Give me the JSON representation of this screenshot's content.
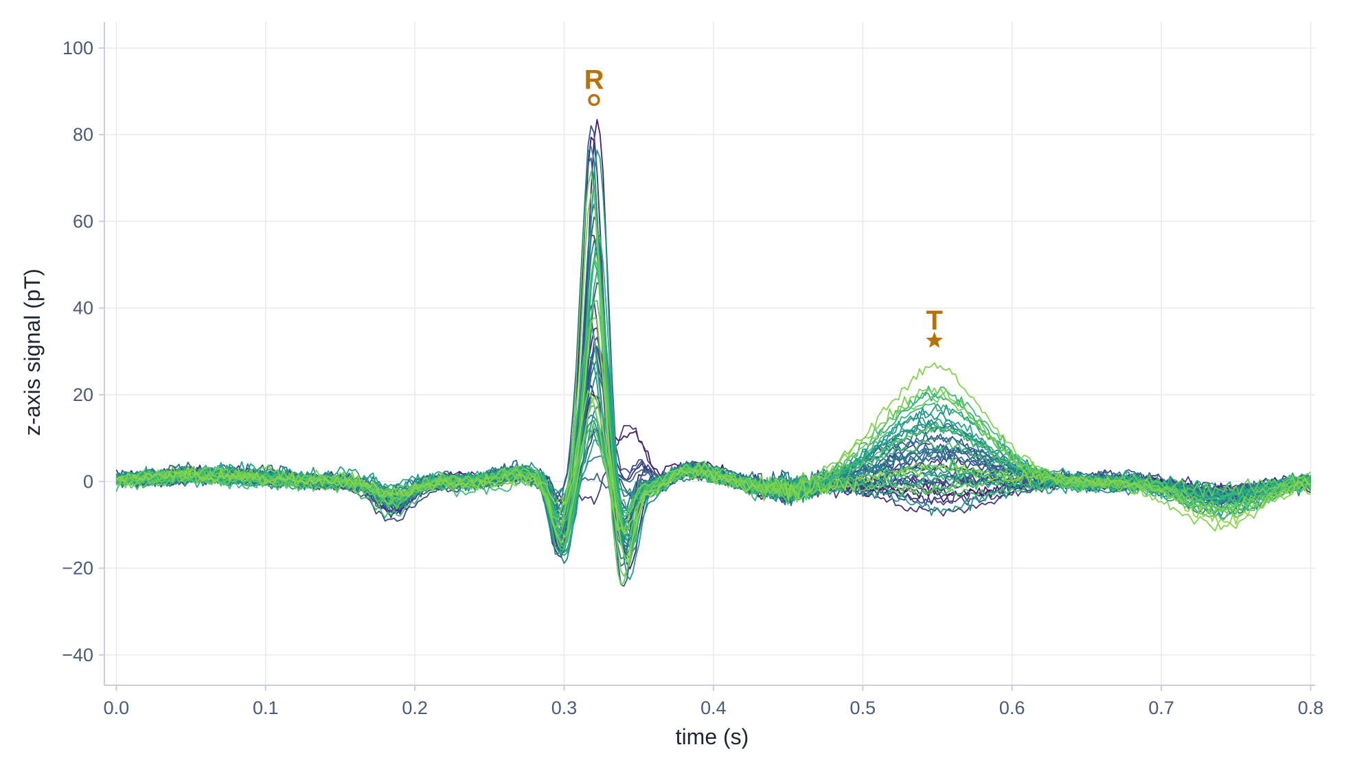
{
  "chart_data": {
    "type": "line",
    "title": "",
    "xlabel": "time (s)",
    "ylabel": "z-axis signal (pT)",
    "xlim": [
      -0.008,
      0.803
    ],
    "ylim": [
      -47,
      106
    ],
    "x_ticks": [
      0.0,
      0.1,
      0.2,
      0.3,
      0.4,
      0.5,
      0.6,
      0.7,
      0.8
    ],
    "x_tick_labels": [
      "0.0",
      "0.1",
      "0.2",
      "0.3",
      "0.4",
      "0.5",
      "0.6",
      "0.7",
      "0.8"
    ],
    "y_ticks": [
      100,
      80,
      60,
      40,
      20,
      0,
      -20,
      -40
    ],
    "y_tick_labels": [
      "100",
      "80",
      "60",
      "40",
      "20",
      "0",
      "−20",
      "−40"
    ],
    "grid": true,
    "legend": "none",
    "series_count": 48,
    "series_colormap": "viridis",
    "sample_interval_s": 0.002,
    "series_shape_anchors": {
      "t": [
        0.0,
        0.05,
        0.1,
        0.15,
        0.17,
        0.185,
        0.2,
        0.25,
        0.28,
        0.295,
        0.308,
        0.32,
        0.332,
        0.34,
        0.352,
        0.37,
        0.4,
        0.45,
        0.5,
        0.548,
        0.6,
        0.65,
        0.7,
        0.74,
        0.78,
        0.8
      ],
      "representative_pT": [
        0.5,
        1.0,
        1.5,
        0.5,
        -2.0,
        -4.0,
        -1.5,
        1.0,
        2.5,
        -10.0,
        -5.0,
        40.0,
        5.0,
        -15.0,
        -3.0,
        3.0,
        0.0,
        -3.0,
        2.0,
        8.0,
        3.0,
        -1.0,
        -1.0,
        -3.0,
        -1.0,
        0.5
      ]
    },
    "series_peak_range_pT": {
      "R_wave": [
        -5,
        83
      ],
      "T_wave": [
        -8,
        29
      ]
    },
    "annotations": [
      {
        "label": "R",
        "x": 0.32,
        "y": 88,
        "marker": "circle",
        "color": "#b8720a"
      },
      {
        "label": "T",
        "x": 0.548,
        "y": 32.5,
        "marker": "star",
        "color": "#b8720a"
      }
    ]
  }
}
